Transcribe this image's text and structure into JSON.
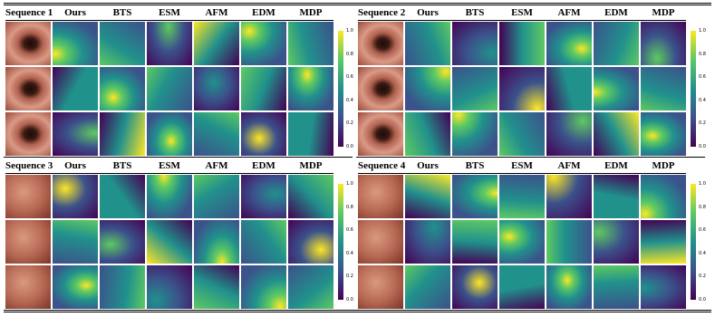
{
  "panels": [
    {
      "header": [
        "Sequence 1",
        "Ours",
        "BTS",
        "ESM",
        "AFM",
        "EDM",
        "MDP"
      ],
      "colorbar_ticks": [
        "1.0",
        "0.8",
        "0.6",
        "0.4",
        "0.2",
        "0.0"
      ]
    },
    {
      "header": [
        "Sequence 2",
        "Ours",
        "BTS",
        "ESM",
        "AFM",
        "EDM",
        "MDP"
      ],
      "colorbar_ticks": [
        "1.0",
        "0.8",
        "0.6",
        "0.4",
        "0.2",
        "0.0"
      ]
    },
    {
      "header": [
        "Sequence 3",
        "Ours",
        "BTS",
        "ESM",
        "AFM",
        "EDM",
        "MDP"
      ],
      "colorbar_ticks": [
        "1.0",
        "0.8",
        "0.6",
        "0.4",
        "0.2",
        "0.0"
      ]
    },
    {
      "header": [
        "Sequence 4",
        "Ours",
        "BTS",
        "ESM",
        "AFM",
        "EDM",
        "MDP"
      ],
      "colorbar_ticks": [
        "1.0",
        "0.8",
        "0.6",
        "0.4",
        "0.2",
        "0.0"
      ]
    }
  ]
}
